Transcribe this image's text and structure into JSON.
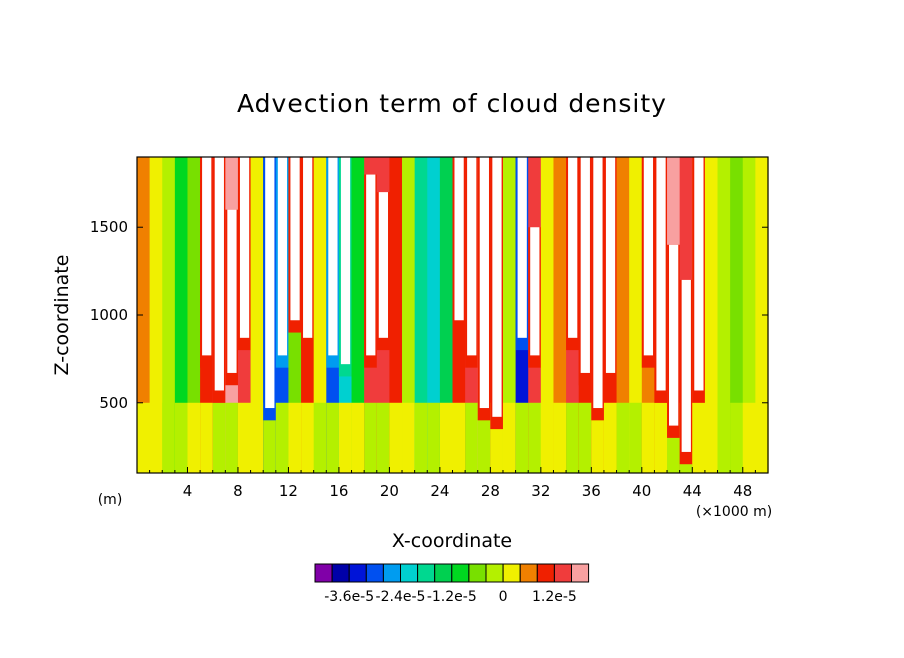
{
  "chart_data": {
    "type": "heatmap",
    "title": "Advection term of cloud density",
    "xlabel": "X-coordinate",
    "ylabel": "Z-coordinate",
    "x_unit_left": "(m)",
    "x_unit_right": "(×1000 m)",
    "xlim": [
      0,
      50
    ],
    "ylim": [
      100,
      1900
    ],
    "x_ticks": [
      4,
      8,
      12,
      16,
      20,
      24,
      28,
      32,
      36,
      40,
      44,
      48
    ],
    "x_tick_labels": [
      "4",
      "8",
      "12",
      "16",
      "20",
      "24",
      "28",
      "32",
      "36",
      "40",
      "44",
      "48"
    ],
    "y_ticks": [
      500,
      1000,
      1500
    ],
    "y_tick_labels": [
      "500",
      "1000",
      "1500"
    ],
    "colorbar": {
      "colors": [
        "#8000a8",
        "#0000a8",
        "#0014d8",
        "#0050f0",
        "#009cf0",
        "#00d0d0",
        "#00d890",
        "#00d050",
        "#00d820",
        "#78e000",
        "#b4f000",
        "#f0f000",
        "#f08000",
        "#f02000",
        "#f03c3c",
        "#f8a0a0"
      ],
      "tick_labels": [
        "-3.6e-5",
        "-2.4e-5",
        "-1.2e-5",
        "0",
        "1.2e-5"
      ]
    },
    "x": [
      0,
      1,
      2,
      3,
      4,
      5,
      6,
      7,
      8,
      9,
      10,
      11,
      12,
      13,
      14,
      15,
      16,
      17,
      18,
      19,
      20,
      21,
      22,
      23,
      24,
      25,
      26,
      27,
      28,
      29,
      30,
      31,
      32,
      33,
      34,
      35,
      36,
      37,
      38,
      39,
      40,
      41,
      42,
      43,
      44,
      45,
      46,
      47,
      48,
      49,
      50
    ],
    "columns": [
      {
        "x": 0,
        "bg": 12,
        "plume": null
      },
      {
        "x": 1,
        "bg": 11,
        "plume": null
      },
      {
        "x": 2,
        "bg": 10,
        "plume": null
      },
      {
        "x": 3,
        "bg": 8,
        "plume": null
      },
      {
        "x": 4,
        "bg": 9,
        "plume": null
      },
      {
        "x": 5,
        "bg": 13,
        "plume": [
          700,
          1900
        ]
      },
      {
        "x": 6,
        "bg": 14,
        "plume": [
          500,
          1900
        ]
      },
      {
        "x": 7,
        "bg": 15,
        "plume": [
          600,
          1600
        ]
      },
      {
        "x": 8,
        "bg": 14,
        "plume": [
          800,
          1900
        ]
      },
      {
        "x": 9,
        "bg": 11,
        "plume": null
      },
      {
        "x": 10,
        "bg": 2,
        "plume": [
          400,
          1900
        ]
      },
      {
        "x": 11,
        "bg": 3,
        "plume": [
          700,
          1900
        ]
      },
      {
        "x": 12,
        "bg": 9,
        "plume": [
          900,
          1900
        ]
      },
      {
        "x": 13,
        "bg": 13,
        "plume": [
          800,
          1900
        ]
      },
      {
        "x": 14,
        "bg": 11,
        "plume": null
      },
      {
        "x": 15,
        "bg": 3,
        "plume": [
          700,
          1900
        ]
      },
      {
        "x": 16,
        "bg": 5,
        "plume": [
          650,
          1900
        ]
      },
      {
        "x": 17,
        "bg": 8,
        "plume": null
      },
      {
        "x": 18,
        "bg": 14,
        "plume": [
          700,
          1800
        ]
      },
      {
        "x": 19,
        "bg": 14,
        "plume": [
          800,
          1700
        ]
      },
      {
        "x": 20,
        "bg": 13,
        "plume": null
      },
      {
        "x": 21,
        "bg": 10,
        "plume": null
      },
      {
        "x": 22,
        "bg": 6,
        "plume": null
      },
      {
        "x": 23,
        "bg": 5,
        "plume": null
      },
      {
        "x": 24,
        "bg": 7,
        "plume": null
      },
      {
        "x": 25,
        "bg": 13,
        "plume": [
          900,
          1900
        ]
      },
      {
        "x": 26,
        "bg": 14,
        "plume": [
          700,
          1900
        ]
      },
      {
        "x": 27,
        "bg": 15,
        "plume": [
          400,
          1900
        ]
      },
      {
        "x": 28,
        "bg": 14,
        "plume": [
          350,
          1900
        ]
      },
      {
        "x": 29,
        "bg": 10,
        "plume": null
      },
      {
        "x": 30,
        "bg": 2,
        "plume": [
          800,
          1900
        ]
      },
      {
        "x": 31,
        "bg": 14,
        "plume": [
          700,
          1500
        ]
      },
      {
        "x": 32,
        "bg": 11,
        "plume": null
      },
      {
        "x": 33,
        "bg": 12,
        "plume": null
      },
      {
        "x": 34,
        "bg": 14,
        "plume": [
          800,
          1900
        ]
      },
      {
        "x": 35,
        "bg": 13,
        "plume": [
          600,
          1900
        ]
      },
      {
        "x": 36,
        "bg": 14,
        "plume": [
          400,
          1900
        ]
      },
      {
        "x": 37,
        "bg": 13,
        "plume": [
          600,
          1900
        ]
      },
      {
        "x": 38,
        "bg": 12,
        "plume": null
      },
      {
        "x": 39,
        "bg": 11,
        "plume": null
      },
      {
        "x": 40,
        "bg": 12,
        "plume": [
          700,
          1900
        ]
      },
      {
        "x": 41,
        "bg": 13,
        "plume": [
          500,
          1900
        ]
      },
      {
        "x": 42,
        "bg": 15,
        "plume": [
          300,
          1400
        ]
      },
      {
        "x": 43,
        "bg": 14,
        "plume": [
          150,
          1200
        ]
      },
      {
        "x": 44,
        "bg": 12,
        "plume": [
          500,
          1900
        ]
      },
      {
        "x": 45,
        "bg": 11,
        "plume": null
      },
      {
        "x": 46,
        "bg": 10,
        "plume": null
      },
      {
        "x": 47,
        "bg": 9,
        "plume": null
      },
      {
        "x": 48,
        "bg": 10,
        "plume": null
      },
      {
        "x": 49,
        "bg": 11,
        "plume": null
      }
    ]
  }
}
